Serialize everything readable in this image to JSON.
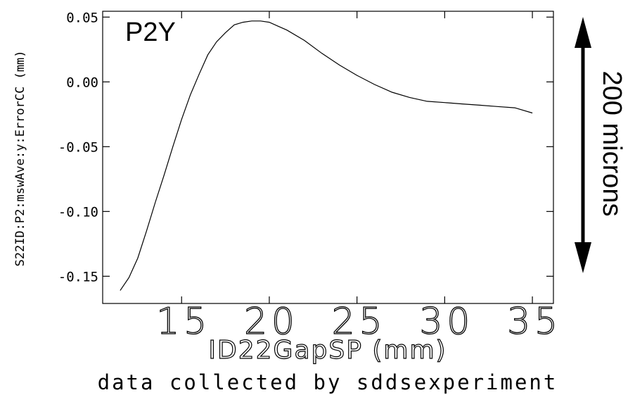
{
  "chart_data": {
    "type": "line",
    "title": "P2Y",
    "xlabel": "ID22GapSP (mm)",
    "ylabel": "S22ID:P2:mswAve:y:ErrorCC (mm)",
    "footer": "data collected by sddsexperiment",
    "annotation": "200 microns",
    "xlim": [
      10.5,
      36.2
    ],
    "ylim": [
      -0.171,
      0.0545
    ],
    "x_ticks": [
      15,
      20,
      25,
      30,
      35
    ],
    "x_tick_labels": [
      "15",
      "20",
      "25",
      "30",
      "35"
    ],
    "y_ticks": [
      0.05,
      0.0,
      -0.05,
      -0.1,
      -0.15
    ],
    "y_tick_labels": [
      "0.05",
      "0.00",
      "-0.05",
      "-0.10",
      "-0.15"
    ],
    "grid": false,
    "series": [
      {
        "x": [
          11.5,
          12.0,
          12.5,
          13.0,
          13.5,
          14.0,
          14.5,
          15.0,
          15.5,
          16.0,
          16.5,
          17.0,
          17.5,
          18.0,
          18.5,
          19.0,
          19.5,
          20.0,
          20.5,
          21.0,
          22.0,
          23.0,
          24.0,
          25.0,
          26.0,
          27.0,
          28.0,
          29.0,
          30.0,
          31.0,
          32.0,
          33.0,
          34.0,
          35.0
        ],
        "y": [
          -0.161,
          -0.151,
          -0.136,
          -0.115,
          -0.093,
          -0.072,
          -0.05,
          -0.029,
          -0.01,
          0.006,
          0.021,
          0.031,
          0.038,
          0.044,
          0.046,
          0.047,
          0.047,
          0.046,
          0.043,
          0.04,
          0.032,
          0.022,
          0.013,
          0.005,
          -0.002,
          -0.008,
          -0.012,
          -0.015,
          -0.016,
          -0.017,
          -0.018,
          -0.019,
          -0.02,
          -0.024
        ]
      }
    ]
  }
}
